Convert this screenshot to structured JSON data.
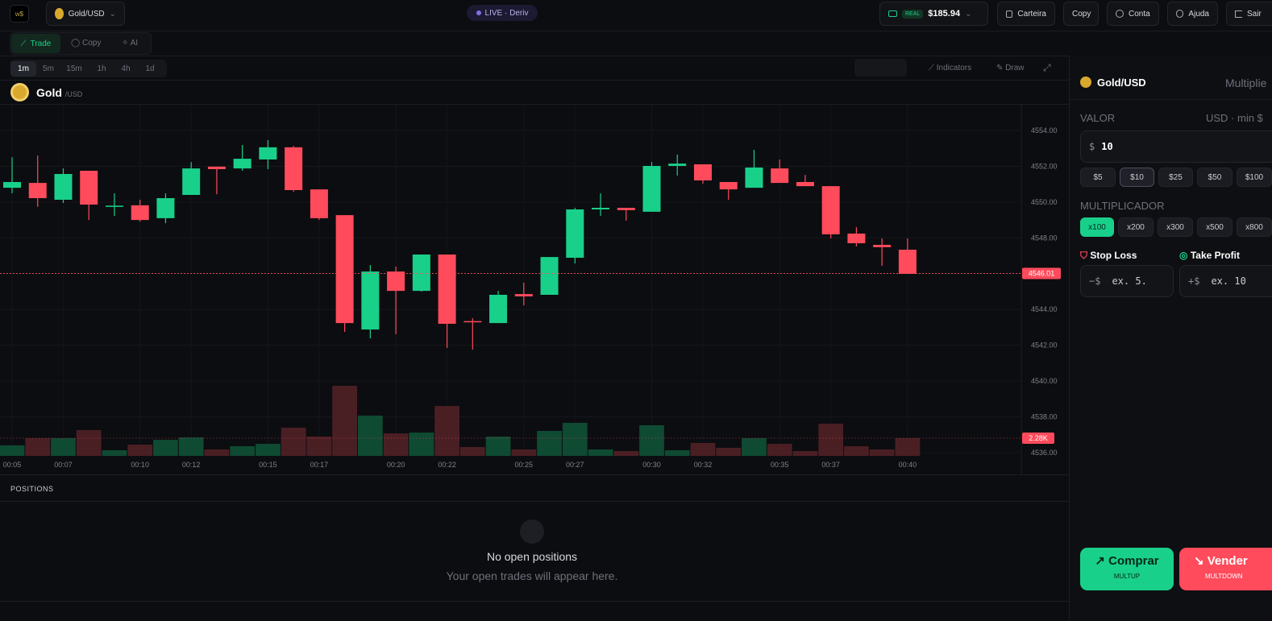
{
  "topbar": {
    "logo": "w$",
    "symbol": "Gold/USD",
    "live": "LIVE · Deriv",
    "account_type": "REAL",
    "balance": "$185.94",
    "buttons": [
      "Carteira",
      "Copy",
      "Conta",
      "Ajuda",
      "Sair"
    ]
  },
  "tabs": [
    "Trade",
    "Copy",
    "AI"
  ],
  "timeframes": [
    "1m",
    "5m",
    "15m",
    "1h",
    "4h",
    "1d"
  ],
  "toolbar": [
    "Indicators",
    "Draw"
  ],
  "instrument": {
    "name": "Gold",
    "quote": "/USD"
  },
  "chart_data": {
    "type": "candlestick",
    "categories": [
      "00:05",
      null,
      "00:07",
      null,
      null,
      "00:10",
      null,
      "00:12",
      null,
      null,
      "00:15",
      null,
      "00:17",
      null,
      null,
      "00:20",
      null,
      "00:22",
      null,
      null,
      "00:25",
      null,
      "00:27",
      null,
      null,
      "00:30",
      null,
      "00:32",
      null,
      null,
      "00:35",
      null,
      "00:37",
      null,
      null,
      "00:40"
    ],
    "open": [
      4550.8,
      4551.07,
      4550.13,
      4551.75,
      4549.73,
      4549.82,
      4549.1,
      4550.4,
      4551.98,
      4551.88,
      4552.38,
      4553.06,
      4550.71,
      4549.27,
      4542.88,
      4546.12,
      4545.04,
      4547.07,
      4543.35,
      4543.24,
      4544.86,
      4544.82,
      4546.89,
      4549.59,
      4549.68,
      4549.46,
      4552.02,
      4552.11,
      4551.12,
      4550.8,
      4551.88,
      4551.12,
      4550.89,
      4548.24,
      4547.61,
      4547.34
    ],
    "high": [
      4552.51,
      4552.6,
      4551.88,
      4551.75,
      4550.49,
      4550.13,
      4550.49,
      4552.24,
      4551.98,
      4553.19,
      4553.46,
      4553.14,
      4550.71,
      4549.27,
      4546.48,
      4546.39,
      4547.07,
      4547.07,
      4543.51,
      4545.04,
      4545.5,
      4546.93,
      4549.68,
      4550.49,
      4549.68,
      4552.24,
      4552.65,
      4552.11,
      4551.12,
      4552.92,
      4552.38,
      4551.52,
      4550.89,
      4548.6,
      4547.97,
      4547.97
    ],
    "low": [
      4550.49,
      4549.73,
      4549.95,
      4549.0,
      4549.23,
      4548.91,
      4548.82,
      4550.4,
      4550.44,
      4551.75,
      4551.84,
      4550.58,
      4549.0,
      4542.75,
      4542.39,
      4542.62,
      4545.0,
      4541.85,
      4541.76,
      4543.24,
      4544.23,
      4544.82,
      4546.57,
      4549.23,
      4548.96,
      4549.46,
      4551.48,
      4551.03,
      4550.13,
      4550.8,
      4551.07,
      4550.89,
      4547.97,
      4547.52,
      4546.44,
      4545.99
    ],
    "close": [
      4551.12,
      4550.22,
      4551.57,
      4549.86,
      4549.8,
      4549.0,
      4550.22,
      4551.88,
      4551.84,
      4552.42,
      4553.06,
      4550.67,
      4549.1,
      4543.24,
      4546.12,
      4545.04,
      4547.07,
      4543.2,
      4543.3,
      4544.82,
      4544.73,
      4546.93,
      4549.59,
      4549.68,
      4549.55,
      4552.02,
      4552.15,
      4551.21,
      4550.71,
      4551.93,
      4551.07,
      4550.89,
      4548.2,
      4547.7,
      4547.48,
      4545.99
    ],
    "volume": [
      1.35,
      2.28,
      2.28,
      3.32,
      0.73,
      1.45,
      2.07,
      2.38,
      0.83,
      1.24,
      1.55,
      3.63,
      2.49,
      9.02,
      5.18,
      2.9,
      3.0,
      6.42,
      1.14,
      2.49,
      0.83,
      3.21,
      4.25,
      0.83,
      0.62,
      3.94,
      0.73,
      1.66,
      1.04,
      2.28,
      1.55,
      0.62,
      4.14,
      1.24,
      0.83,
      2.28
    ],
    "ylim": [
      4535.82,
      4555.44
    ],
    "yticks": [
      {
        "value": 4536,
        "label": "4536.00"
      },
      {
        "value": 4538,
        "label": "4538.00"
      },
      {
        "value": 4540,
        "label": "4540.00"
      },
      {
        "value": 4542,
        "label": "4542.00"
      },
      {
        "value": 4544,
        "label": "4544.00"
      },
      {
        "value": 4546,
        "label": "4546.00"
      },
      {
        "value": 4548,
        "label": "4548.00"
      },
      {
        "value": 4550,
        "label": "4550.00"
      },
      {
        "value": 4552,
        "label": "4552.00"
      },
      {
        "value": 4554,
        "label": "4554.00"
      }
    ],
    "volume_ylim": [
      0,
      10
    ],
    "last_price": 4546.01,
    "last_volume": {
      "value": 2.28,
      "label": "2.28K"
    },
    "up_color": "#19d08a",
    "down_color": "#ff4b5c",
    "up_volume_color": "#0f4a33",
    "down_volume_color": "#4a1f24",
    "grid": true
  },
  "positions": {
    "title": "POSITIONS",
    "empty_title": "No open positions",
    "empty_text": "Your open trades will appear here."
  },
  "order_panel": {
    "symbol": "Gold/USD",
    "mode": "Multiplie",
    "amount_label": "VALOR",
    "amount_hint": "USD · min $",
    "currency": "$",
    "amount": "10",
    "presets": [
      "$5",
      "$10",
      "$25",
      "$50",
      "$100"
    ],
    "multiplier_label": "MULTIPLICADOR",
    "multipliers": [
      "x100",
      "x200",
      "x300",
      "x500",
      "x800"
    ],
    "stop_loss": "Stop Loss",
    "take_profit": "Take Profit",
    "sl_prefix": "−$",
    "sl_placeholder": "ex. 5.",
    "tp_prefix": "+$",
    "tp_placeholder": "ex. 10",
    "buy": "Comprar",
    "buy_sub": "MULTUP",
    "sell": "Vender",
    "sell_sub": "MULTDOWN"
  }
}
